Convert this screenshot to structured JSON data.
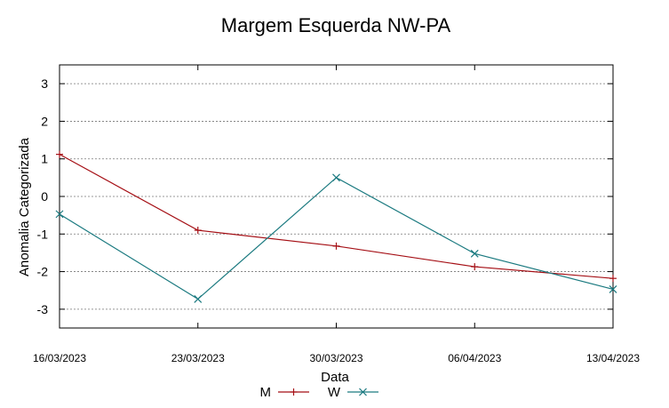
{
  "chart_data": {
    "type": "line",
    "title": "Margem Esquerda NW-PA",
    "xlabel": "Data",
    "ylabel": "Anomalia Categorizada",
    "categories": [
      "16/03/2023",
      "23/03/2023",
      "30/03/2023",
      "06/04/2023",
      "13/04/2023"
    ],
    "y_ticks": [
      "3",
      "2",
      "1",
      "0",
      "-1",
      "-2",
      "-3"
    ],
    "ylim": [
      -3.5,
      3.5
    ],
    "grid": "horizontal-dashed",
    "legend_position": "bottom-center",
    "series": [
      {
        "name": "M",
        "marker": "+",
        "color": "#a50f15",
        "values": [
          1.12,
          -0.9,
          -1.32,
          -1.87,
          -2.18
        ]
      },
      {
        "name": "W",
        "marker": "x",
        "color": "#1b7a80",
        "values": [
          -0.47,
          -2.73,
          0.5,
          -1.52,
          -2.47
        ]
      }
    ]
  }
}
